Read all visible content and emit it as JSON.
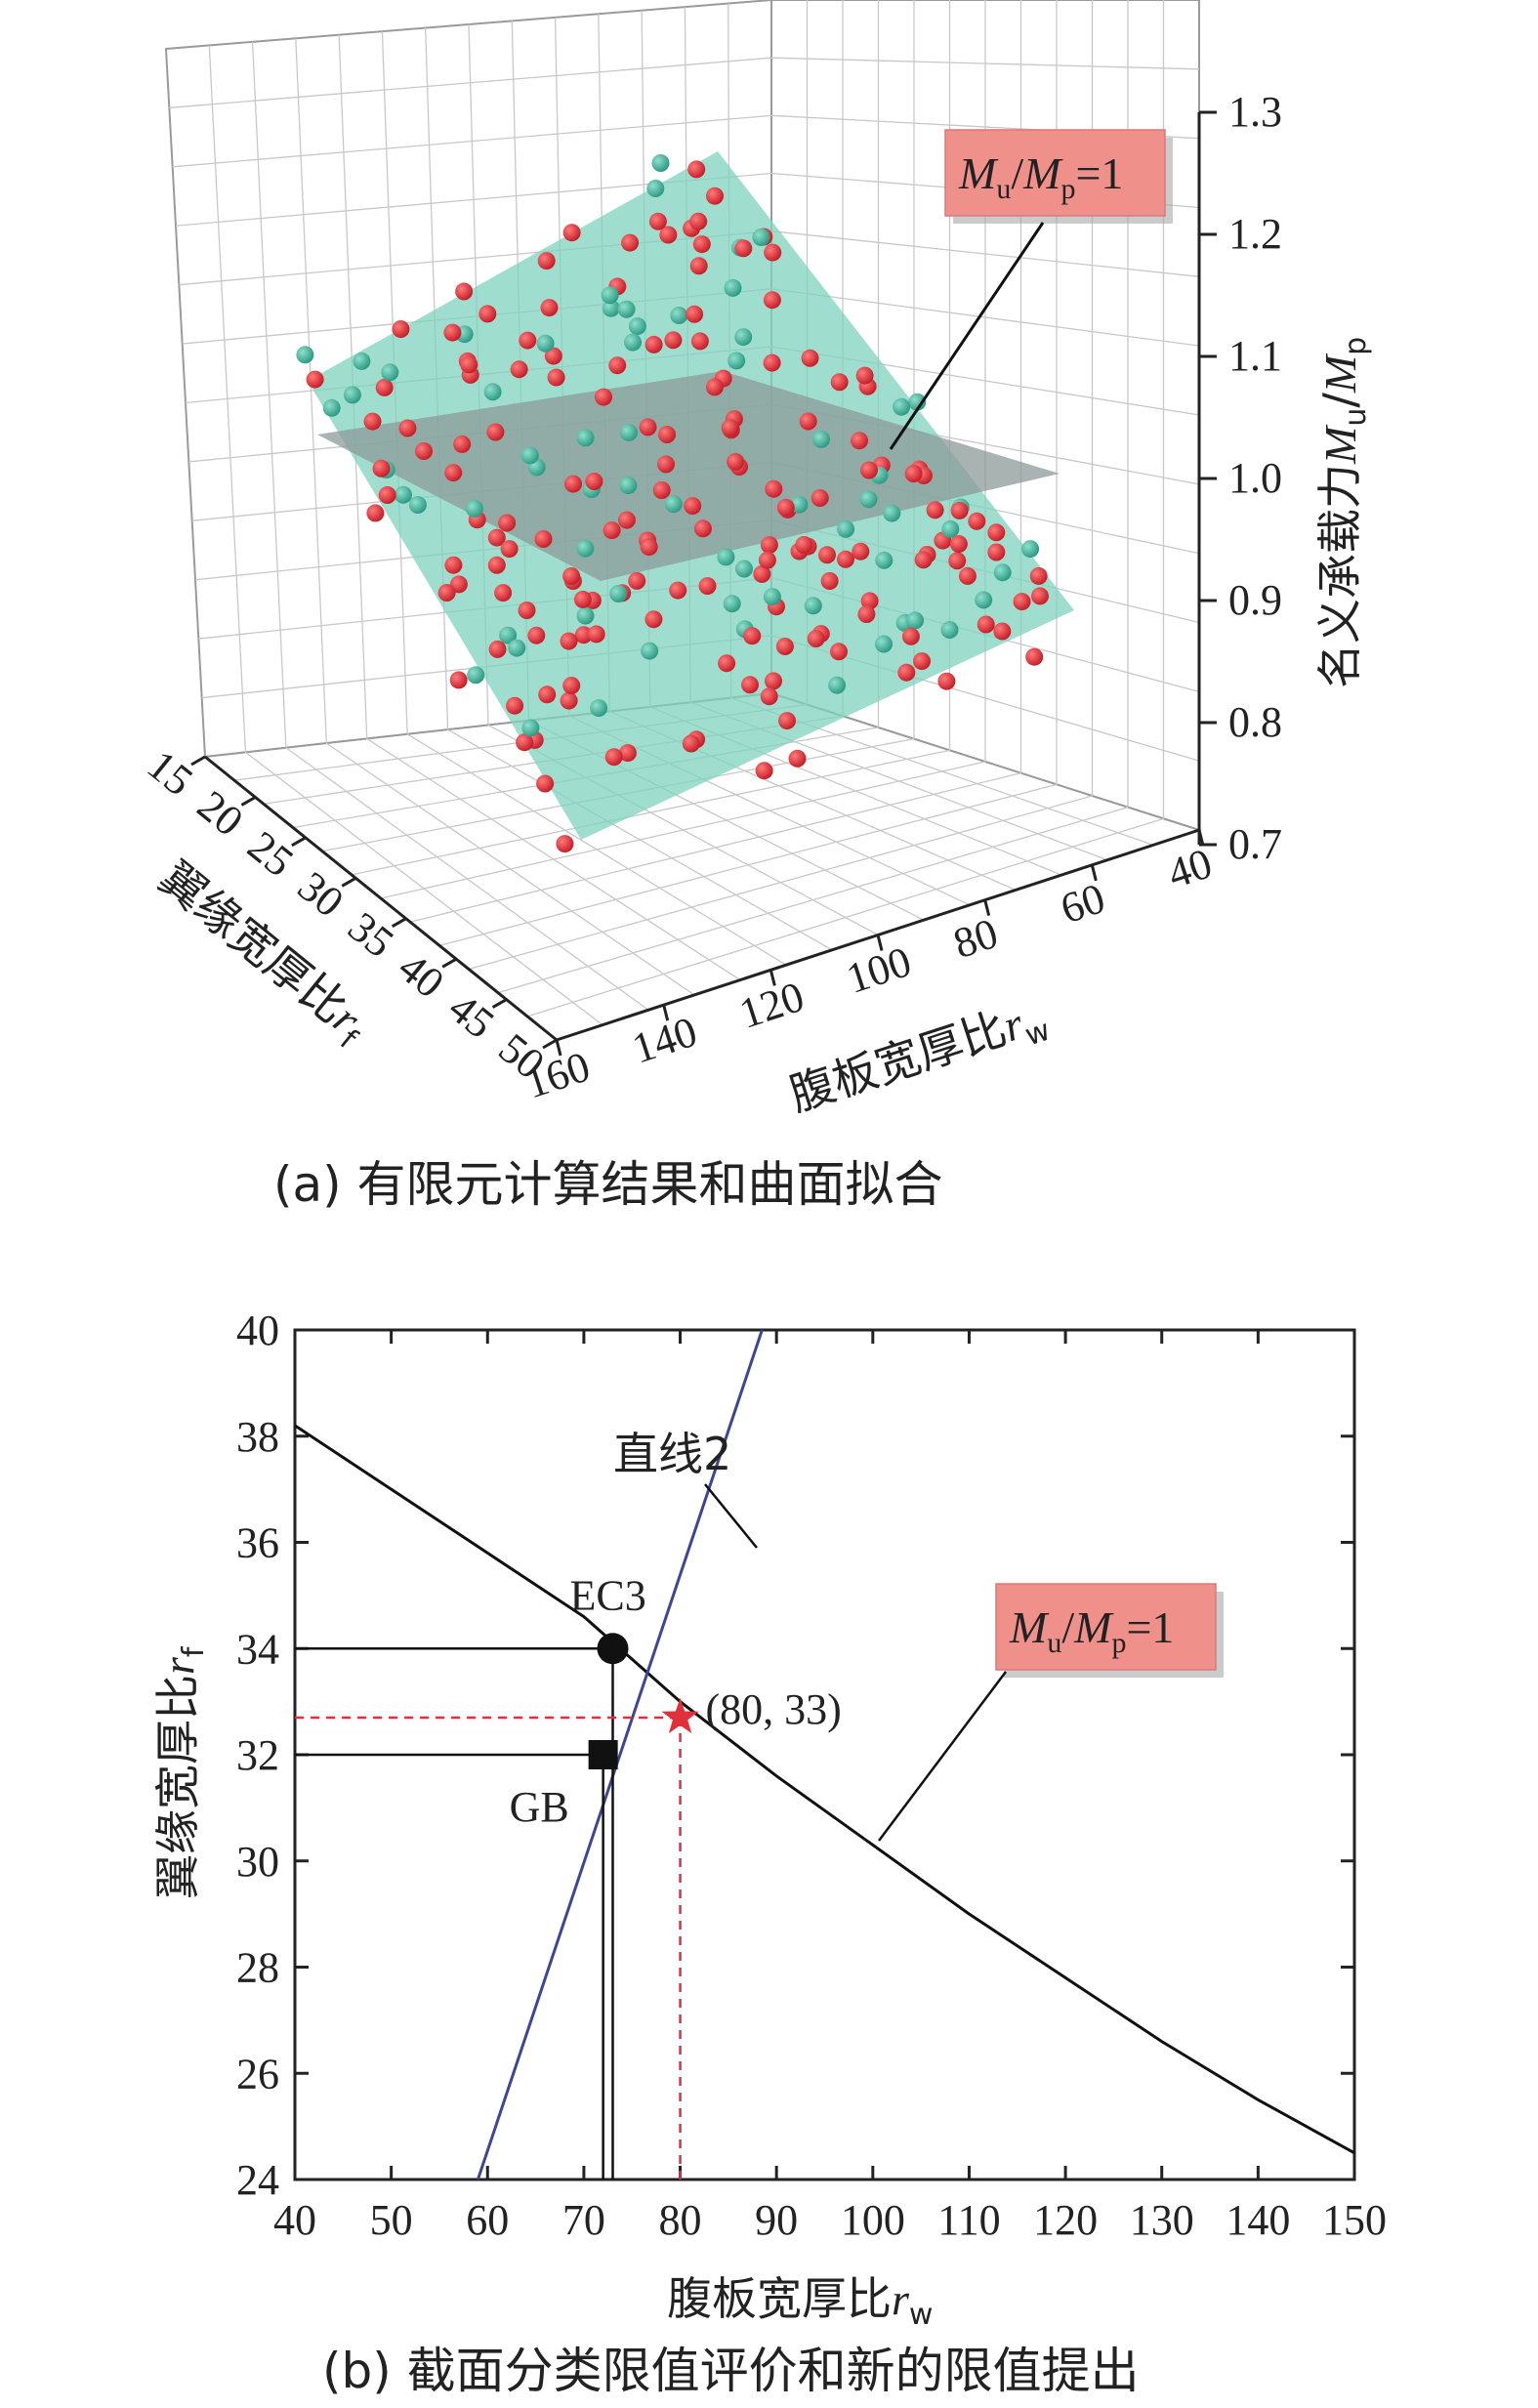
{
  "colors": {
    "surface": "#7fd3bd",
    "plane": "#8c9a98",
    "point_red": "#c8202a",
    "point_teal": "#2f9c86",
    "label_box": "#f0908a",
    "blue_line": "#3d4597",
    "red_dash": "#e0303a"
  },
  "chart_data": [
    {
      "type": "scatter",
      "panel": "a",
      "caption": "(a) 有限元计算结果和曲面拟合",
      "x_axis": {
        "label": "腹板宽厚比",
        "var": "r",
        "sub": "w",
        "ticks": [
          "160",
          "140",
          "120",
          "100",
          "80",
          "60",
          "40"
        ],
        "range": [
          40,
          160
        ]
      },
      "y_axis": {
        "label": "翼缘宽厚比",
        "var": "r",
        "sub": "f",
        "ticks": [
          "15",
          "20",
          "25",
          "30",
          "35",
          "40",
          "45",
          "50"
        ],
        "range": [
          15,
          50
        ]
      },
      "z_axis": {
        "label": "名义承载力",
        "var1": "M",
        "sub1": "u",
        "slash": "/",
        "var2": "M",
        "sub2": "p",
        "ticks": [
          "0.7",
          "0.8",
          "0.9",
          "1.0",
          "1.1",
          "1.2",
          "1.3"
        ],
        "range": [
          0.7,
          1.3
        ]
      },
      "annotation": {
        "v1": "M",
        "s1": "u",
        "slash": "/",
        "v2": "M",
        "s2": "p",
        "eq": "=1"
      },
      "grid": true
    },
    {
      "type": "line",
      "panel": "b",
      "caption": "(b) 截面分类限值评价和新的限值提出",
      "xlabel": {
        "text": "腹板宽厚比",
        "var": "r",
        "sub": "w"
      },
      "ylabel": {
        "text": "翼缘宽厚比",
        "var": "r",
        "sub": "f"
      },
      "xlim": [
        40,
        150
      ],
      "ylim": [
        24,
        40
      ],
      "xticks": [
        40,
        50,
        60,
        70,
        80,
        90,
        100,
        110,
        120,
        130,
        140,
        150
      ],
      "yticks": [
        24,
        26,
        28,
        30,
        32,
        34,
        36,
        38,
        40
      ],
      "series": [
        {
          "name": "M_u/M_p=1",
          "x": [
            40,
            50,
            60,
            70,
            80,
            90,
            100,
            110,
            120,
            130,
            140,
            150
          ],
          "y": [
            38.2,
            37.0,
            35.8,
            34.6,
            33.0,
            31.6,
            30.3,
            29.0,
            27.8,
            26.6,
            25.5,
            24.5
          ]
        },
        {
          "name": "直线2",
          "x": [
            59,
            88.5
          ],
          "y": [
            24,
            40
          ]
        }
      ],
      "points": [
        {
          "label": "EC3",
          "x": 73,
          "y": 34,
          "marker": "circle"
        },
        {
          "label": "GB",
          "x": 72,
          "y": 32,
          "marker": "square"
        },
        {
          "label": "(80, 33)",
          "x": 80,
          "y": 32.7,
          "marker": "star"
        }
      ],
      "annotations": {
        "line2": "直线2",
        "curve": {
          "v1": "M",
          "s1": "u",
          "slash": "/",
          "v2": "M",
          "s2": "p",
          "eq": "=1"
        }
      }
    }
  ]
}
